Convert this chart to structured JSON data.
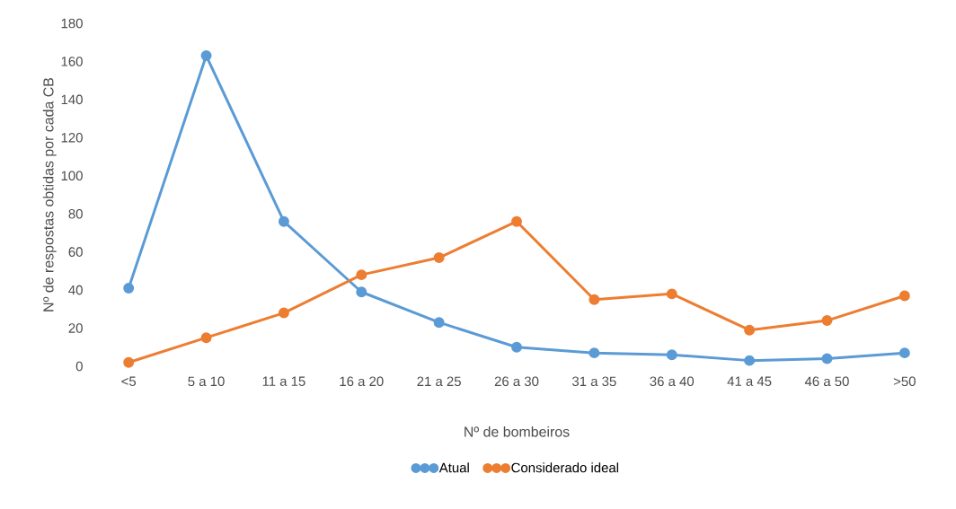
{
  "chart_data": {
    "type": "line",
    "xlabel": "Nº de bombeiros",
    "ylabel": "Nº de respostas obtidas por cada CB",
    "categories": [
      "<5",
      "5 a 10",
      "11 a 15",
      "16 a 20",
      "21 a 25",
      "26 a 30",
      "31 a 35",
      "36 a 40",
      "41 a 45",
      "46 a 50",
      ">50"
    ],
    "series": [
      {
        "name": "Atual",
        "color": "#5b9bd5",
        "values": [
          41,
          163,
          76,
          39,
          23,
          10,
          7,
          6,
          3,
          4,
          7
        ]
      },
      {
        "name": "Considerado ideal",
        "color": "#ed7d31",
        "values": [
          2,
          15,
          28,
          48,
          57,
          76,
          35,
          38,
          19,
          24,
          37
        ]
      }
    ],
    "ylim": [
      0,
      180
    ],
    "yticks": [
      0,
      20,
      40,
      60,
      80,
      100,
      120,
      140,
      160,
      180
    ],
    "grid": false,
    "legend": "bottom",
    "marker": "circle",
    "line_style": "solid"
  }
}
